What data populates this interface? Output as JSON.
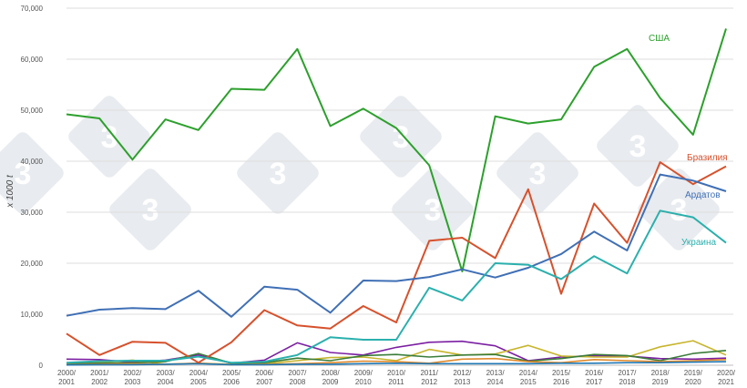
{
  "chart_data": {
    "type": "line",
    "ylabel": "x 1000 t",
    "ylim": [
      0,
      70000
    ],
    "yticks": [
      "0",
      "10,000",
      "20,000",
      "30,000",
      "40,000",
      "50,000",
      "60,000",
      "70,000"
    ],
    "ytick_values": [
      0,
      10000,
      20000,
      30000,
      40000,
      50000,
      60000,
      70000
    ],
    "grid": true,
    "x": [
      [
        "2000/",
        "2001"
      ],
      [
        "2001/",
        "2002"
      ],
      [
        "2002/",
        "2003"
      ],
      [
        "2003/",
        "2004"
      ],
      [
        "2004/",
        "2005"
      ],
      [
        "2005/",
        "2006"
      ],
      [
        "2006/",
        "2007"
      ],
      [
        "2007/",
        "2008"
      ],
      [
        "2008/",
        "2009"
      ],
      [
        "2009/",
        "2010"
      ],
      [
        "2010/",
        "2011"
      ],
      [
        "2011/",
        "2012"
      ],
      [
        "2012/",
        "2013"
      ],
      [
        "2013/",
        "2014"
      ],
      [
        "2014/",
        "2015"
      ],
      [
        "2015/",
        "2016"
      ],
      [
        "2016/",
        "2017"
      ],
      [
        "2017/",
        "2018"
      ],
      [
        "2018/",
        "2019"
      ],
      [
        "2019/",
        "2020"
      ],
      [
        "2020/",
        "2021"
      ]
    ],
    "series": [
      {
        "name": "США",
        "color": "#2ca02c",
        "labeled": true,
        "values": [
          49200,
          48400,
          40300,
          48200,
          46100,
          54200,
          54000,
          62000,
          46900,
          50300,
          46500,
          39200,
          18400,
          48800,
          47400,
          48200,
          58500,
          62000,
          52400,
          45200,
          66000
        ]
      },
      {
        "name": "Бразилия",
        "color": "#d6512c",
        "labeled": true,
        "values": [
          6200,
          2000,
          4600,
          4400,
          500,
          4500,
          10800,
          7800,
          7200,
          11600,
          8400,
          24400,
          25000,
          21000,
          34500,
          14000,
          31700,
          24000,
          39800,
          35500,
          39000
        ]
      },
      {
        "name": "Ардатов",
        "color": "#3f6fb5",
        "labeled": true,
        "values": [
          9700,
          10900,
          11200,
          11000,
          14600,
          9500,
          15400,
          14800,
          10300,
          16600,
          16500,
          17300,
          18800,
          17200,
          19100,
          21800,
          26200,
          22500,
          37400,
          36200,
          34100
        ]
      },
      {
        "name": "Украина",
        "color": "#2ab0ad",
        "labeled": true,
        "values": [
          500,
          800,
          900,
          900,
          1700,
          500,
          700,
          2000,
          5500,
          5000,
          5000,
          15200,
          12700,
          20000,
          19700,
          16900,
          21400,
          18000,
          30300,
          29000,
          24000
        ]
      },
      {
        "name": "",
        "color": "#7b1fa2",
        "labeled": false,
        "values": [
          1200,
          1100,
          600,
          1000,
          2000,
          400,
          1000,
          4400,
          2500,
          2000,
          3500,
          4500,
          4700,
          3800,
          900,
          1600,
          1900,
          1800,
          1300,
          1200,
          1400
        ]
      },
      {
        "name": "",
        "color": "#c7b42c",
        "labeled": false,
        "values": [
          300,
          500,
          1000,
          200,
          400,
          200,
          300,
          900,
          1500,
          1600,
          900,
          3100,
          2000,
          2200,
          3900,
          1800,
          1600,
          1600,
          3600,
          4800,
          2000
        ]
      },
      {
        "name": "",
        "color": "#3a7d3a",
        "labeled": false,
        "values": [
          300,
          400,
          500,
          700,
          2300,
          400,
          500,
          1400,
          900,
          1900,
          2100,
          1600,
          2000,
          2100,
          800,
          1300,
          2100,
          1900,
          900,
          2300,
          2900
        ]
      },
      {
        "name": "",
        "color": "#e08a2c",
        "labeled": false,
        "values": [
          100,
          200,
          300,
          200,
          400,
          100,
          200,
          300,
          500,
          800,
          700,
          400,
          1200,
          1300,
          700,
          500,
          1100,
          900,
          700,
          900,
          1100
        ]
      },
      {
        "name": "",
        "color": "#1f77b4",
        "labeled": false,
        "values": [
          50,
          100,
          100,
          200,
          300,
          100,
          100,
          200,
          200,
          300,
          400,
          300,
          300,
          300,
          300,
          400,
          400,
          500,
          500,
          600,
          700
        ]
      }
    ]
  }
}
